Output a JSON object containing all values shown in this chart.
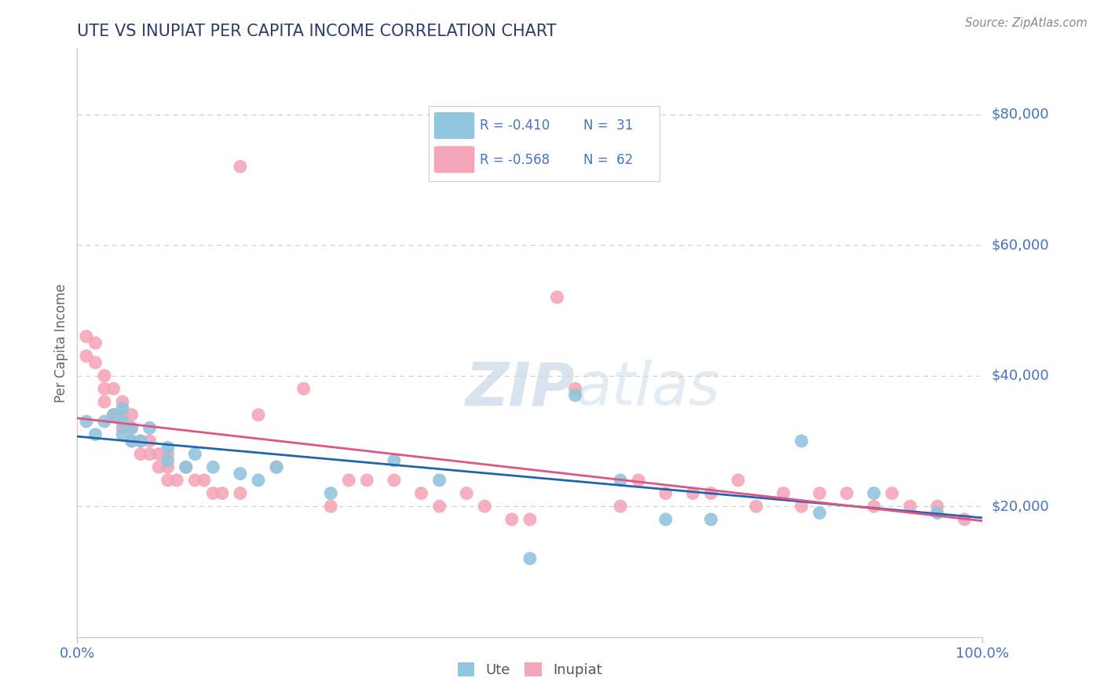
{
  "title": "UTE VS INUPIAT PER CAPITA INCOME CORRELATION CHART",
  "source": "Source: ZipAtlas.com",
  "ylabel": "Per Capita Income",
  "watermark_bold": "ZIP",
  "watermark_light": "atlas",
  "xlim": [
    0,
    100
  ],
  "ylim": [
    0,
    90000
  ],
  "yticks": [
    20000,
    40000,
    60000,
    80000
  ],
  "ytick_labels": [
    "$20,000",
    "$40,000",
    "$60,000",
    "$80,000"
  ],
  "xtick_labels": [
    "0.0%",
    "100.0%"
  ],
  "legend_r_ute": "R = -0.410",
  "legend_n_ute": "N =  31",
  "legend_r_inp": "R = -0.568",
  "legend_n_inp": "N =  62",
  "ute_color": "#92c5de",
  "inupiat_color": "#f4a6b8",
  "ute_line_color": "#2166ac",
  "inupiat_line_color": "#e05585",
  "title_color": "#2c3e6b",
  "axis_color": "#4472c4",
  "background_color": "#ffffff",
  "grid_color": "#cccccc",
  "ute_x": [
    1,
    2,
    3,
    4,
    5,
    5,
    5,
    6,
    6,
    7,
    8,
    10,
    10,
    12,
    13,
    15,
    18,
    20,
    22,
    28,
    35,
    40,
    50,
    55,
    60,
    65,
    70,
    80,
    82,
    88,
    95
  ],
  "ute_y": [
    33000,
    31000,
    33000,
    34000,
    35000,
    33000,
    31000,
    32000,
    30000,
    30000,
    32000,
    29000,
    27000,
    26000,
    28000,
    26000,
    25000,
    24000,
    26000,
    22000,
    27000,
    24000,
    12000,
    37000,
    24000,
    18000,
    18000,
    30000,
    19000,
    22000,
    19000
  ],
  "inupiat_x": [
    1,
    1,
    2,
    2,
    3,
    3,
    3,
    4,
    4,
    5,
    5,
    5,
    6,
    6,
    6,
    7,
    7,
    8,
    8,
    9,
    9,
    10,
    10,
    10,
    11,
    12,
    13,
    14,
    15,
    16,
    18,
    20,
    22,
    25,
    28,
    30,
    32,
    35,
    38,
    40,
    43,
    45,
    48,
    50,
    53,
    55,
    60,
    62,
    65,
    68,
    70,
    73,
    75,
    78,
    80,
    82,
    85,
    88,
    90,
    92,
    95,
    98
  ],
  "inupiat_y": [
    46000,
    43000,
    45000,
    42000,
    40000,
    38000,
    36000,
    38000,
    34000,
    36000,
    34000,
    32000,
    34000,
    32000,
    30000,
    30000,
    28000,
    28000,
    30000,
    28000,
    26000,
    28000,
    26000,
    24000,
    24000,
    26000,
    24000,
    24000,
    22000,
    22000,
    22000,
    34000,
    26000,
    38000,
    20000,
    24000,
    24000,
    24000,
    22000,
    20000,
    22000,
    20000,
    18000,
    18000,
    52000,
    38000,
    20000,
    24000,
    22000,
    22000,
    22000,
    24000,
    20000,
    22000,
    20000,
    22000,
    22000,
    20000,
    22000,
    20000,
    20000,
    18000
  ],
  "outlier_inupiat_x": 18,
  "outlier_inupiat_y": 72000
}
